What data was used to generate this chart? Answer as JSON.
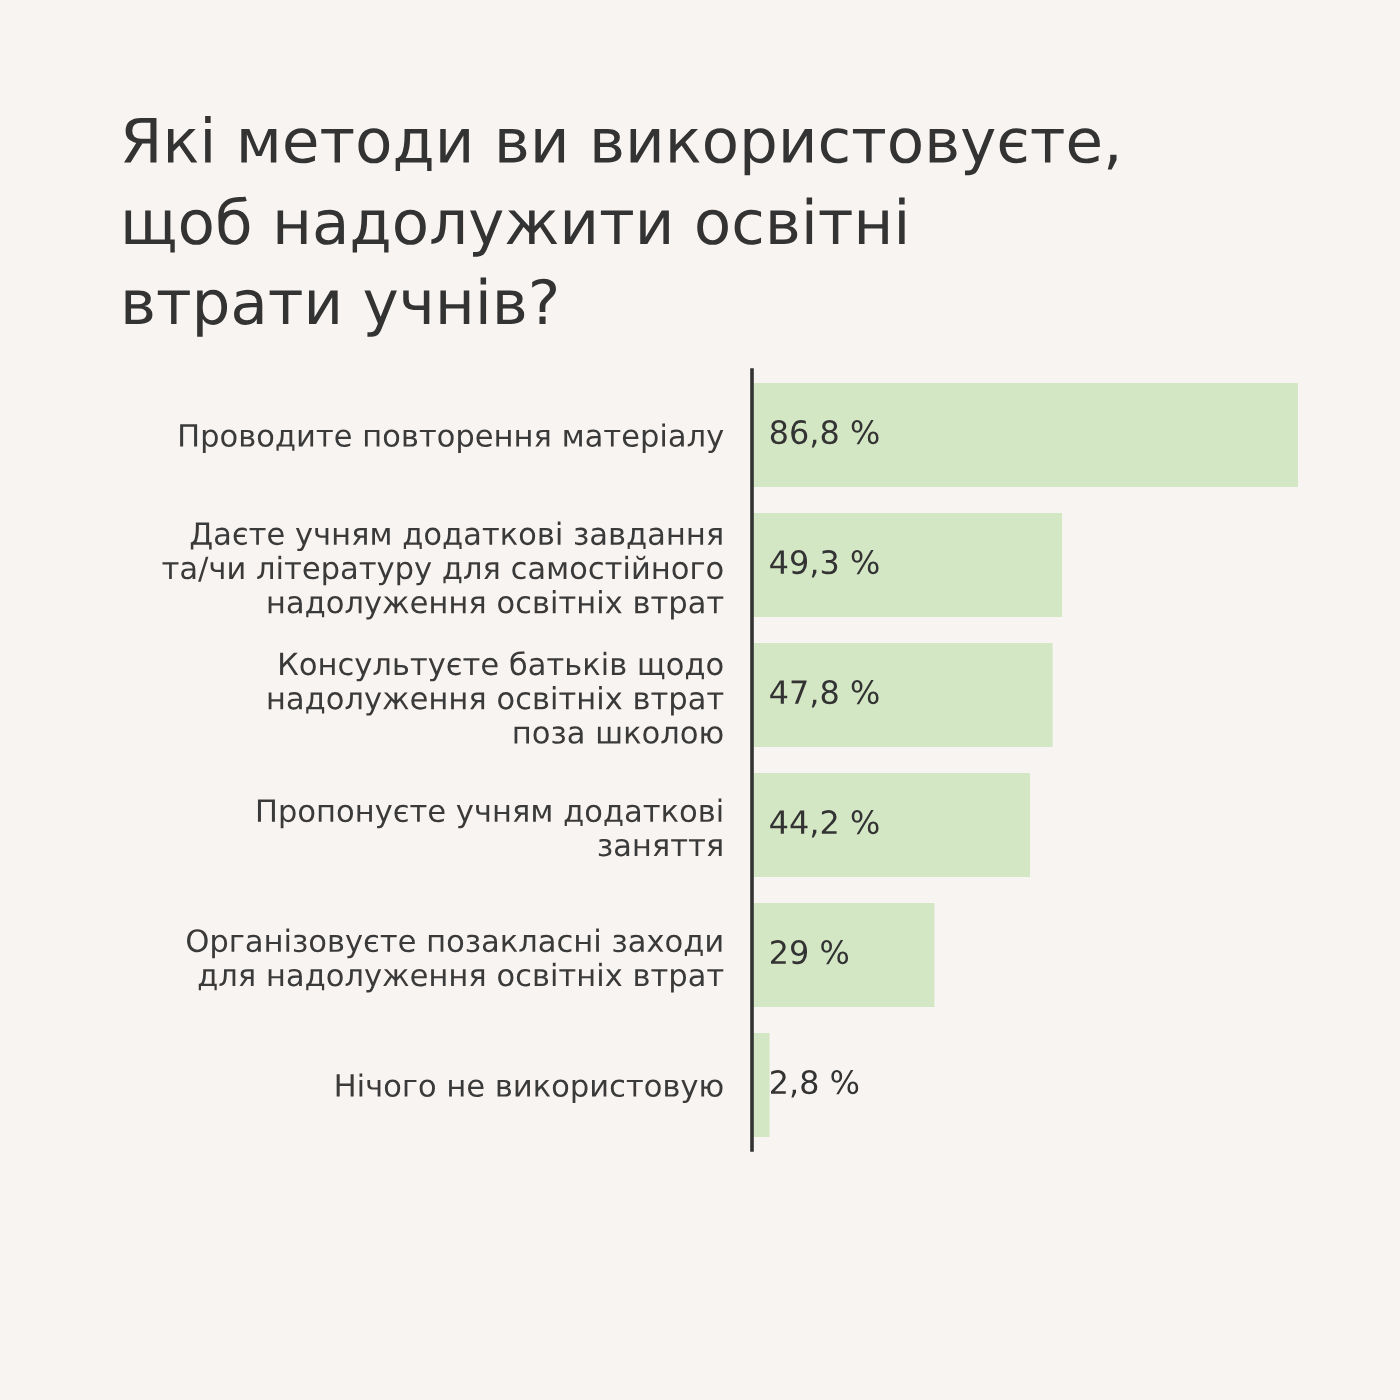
{
  "chart_data": {
    "type": "bar",
    "orientation": "horizontal",
    "title": "Які методи ви використовуєте,\nщоб надолужити освітні\nвтрати учнів?",
    "categories": [
      "Проводите повторення матеріалу",
      "Даєте учням додаткові завдання\nта/чи літературу для самостійного\nнадолуження освітніх втрат",
      "Консультуєте батьків щодо\nнадолуження освітніх втрат\nпоза школою",
      "Пропонуєте учням додаткові\nзаняття",
      "Організовуєте позакласні заходи\nдля надолуження освітніх втрат",
      "Нічого не використовую"
    ],
    "values": [
      86.8,
      49.3,
      47.8,
      44.2,
      29,
      2.8
    ],
    "value_labels": [
      "86,8 %",
      "49,3 %",
      "47,8 %",
      "44,2 %",
      "29 %",
      "2,8 %"
    ],
    "color": "#d4e7c5",
    "tick_labels": "y"
  }
}
